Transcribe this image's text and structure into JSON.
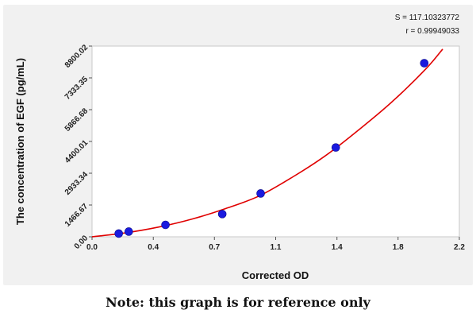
{
  "chart_data": {
    "type": "scatter",
    "xlabel": "Corrected OD",
    "ylabel": "The concentration of EGF (pg/mL)",
    "xlim": [
      0.0,
      2.2
    ],
    "ylim": [
      0,
      8800.02
    ],
    "x_ticks": [
      "0.0",
      "0.4",
      "0.7",
      "1.1",
      "1.4",
      "1.8",
      "2.2"
    ],
    "x_tick_values": [
      0.0,
      0.367,
      0.733,
      1.1,
      1.467,
      1.833,
      2.2
    ],
    "y_ticks": [
      "0.00",
      "1466.67",
      "2933.34",
      "4400.01",
      "5866.68",
      "7333.35",
      "8800.02"
    ],
    "y_tick_values": [
      0,
      1466.67,
      2933.34,
      4400.01,
      5866.68,
      7333.35,
      8800.02
    ],
    "grid": false,
    "annotations": {
      "s_value": "S = 117.10323772",
      "r_value": "r = 0.99949033"
    },
    "series": [
      {
        "type": "scatter",
        "color": "#1a1adf",
        "x": [
          0.16,
          0.22,
          0.44,
          0.78,
          1.01,
          1.46,
          1.99
        ],
        "y": [
          150,
          240,
          550,
          1050,
          2000,
          4120,
          8010
        ]
      },
      {
        "type": "line",
        "color": "#e00000",
        "x": [
          0,
          0.2,
          0.4,
          0.6,
          0.8,
          1.0,
          1.2,
          1.4,
          1.6,
          1.8,
          2.0,
          2.1
        ],
        "y": [
          0,
          180,
          450,
          820,
          1300,
          1880,
          2750,
          3750,
          4950,
          6250,
          7750,
          8660
        ]
      }
    ]
  },
  "caption": "Note: this graph is for reference only"
}
